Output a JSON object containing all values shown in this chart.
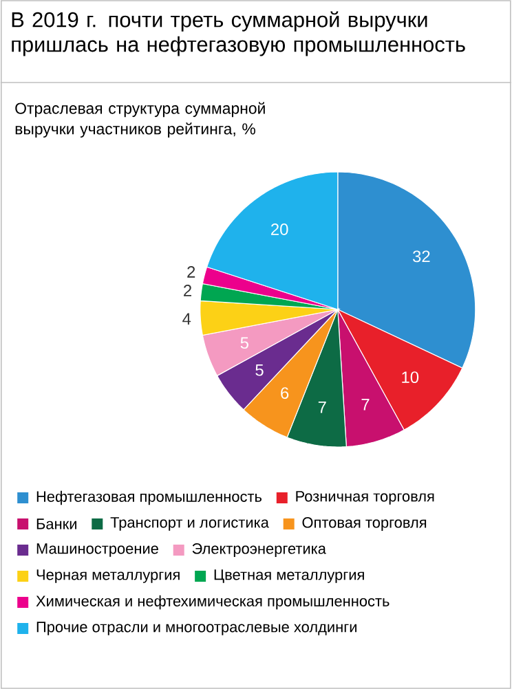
{
  "chart_data": {
    "type": "pie",
    "title": "В 2019 г. почти треть суммарной выручки пришлась на нефтегазовую промышленность",
    "subtitle": "Отраслевая структура суммарной выручки участников рейтинга, %",
    "categories": [
      "Нефтегазовая промышленность",
      "Розничная торговля",
      "Банки",
      "Транспорт и логистика",
      "Оптовая торговля",
      "Машиностроение",
      "Электроэнергетика",
      "Черная металлургия",
      "Цветная металлургия",
      "Химическая и нефтехимическая промышленность",
      "Прочие отрасли и многоотраслевые холдинги"
    ],
    "values": [
      32,
      10,
      7,
      7,
      6,
      5,
      5,
      4,
      2,
      2,
      20
    ],
    "colors": [
      "#2e8fd0",
      "#e8202a",
      "#c8106e",
      "#0d6b45",
      "#f7941d",
      "#6a2c8f",
      "#f49ac1",
      "#fcd116",
      "#00a651",
      "#ec008c",
      "#1fb2ec"
    ],
    "data_labels": true,
    "legend": "bottom"
  }
}
